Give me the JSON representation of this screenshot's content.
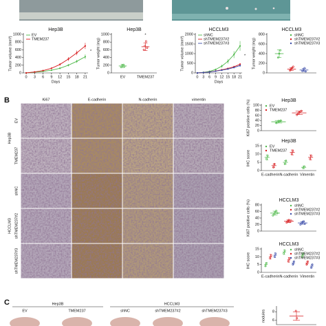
{
  "panel_labels": {
    "b": "B",
    "c": "C"
  },
  "ihc": {
    "columns": [
      "Ki67",
      "E-cadherin",
      "N-cadherin",
      "vimentin"
    ],
    "rows": [
      "EV",
      "TMEM237",
      "shNC",
      "shTMEM237#2",
      "shTMEM237#3"
    ],
    "groups": [
      "Hep3B",
      "HCCLM3"
    ]
  },
  "panel_c": {
    "groups": [
      {
        "label": "Hep3B",
        "items": [
          "EV",
          "TMEM237"
        ]
      },
      {
        "label": "HCCLM3",
        "items": [
          "shNC",
          "shTMEM237#2",
          "shTMEM237#3"
        ]
      }
    ]
  },
  "chart_data": [
    {
      "type": "line",
      "title": "Hep3B",
      "x": [
        0,
        3,
        6,
        9,
        12,
        15,
        18,
        21
      ],
      "xlim": [
        -1,
        22
      ],
      "xticks": [
        0,
        3,
        6,
        9,
        12,
        15,
        18,
        21
      ],
      "xlabel": "Days",
      "ylabel": "Tumor volume (mm³)",
      "ylim": [
        0,
        1000
      ],
      "yticks": [
        0,
        200,
        400,
        600,
        800,
        1000
      ],
      "legend": "upper left",
      "annotations": [
        "*"
      ],
      "series": [
        {
          "name": "EV",
          "color": "#4cb848",
          "values": [
            0,
            20,
            40,
            70,
            120,
            200,
            300,
            420
          ],
          "errors": [
            0,
            5,
            10,
            15,
            20,
            30,
            40,
            60
          ]
        },
        {
          "name": "TMEM237",
          "color": "#d7191c",
          "values": [
            0,
            25,
            60,
            120,
            220,
            360,
            520,
            700
          ],
          "errors": [
            0,
            5,
            10,
            20,
            30,
            50,
            60,
            80
          ]
        }
      ]
    },
    {
      "type": "dot",
      "title": "Hep3B",
      "ylabel": "Tumor weight (mg)",
      "categories": [
        "EV",
        "TMEM237"
      ],
      "ylim": [
        0,
        1000
      ],
      "yticks": [
        0,
        200,
        400,
        600,
        800,
        1000
      ],
      "annotations": [
        "*"
      ],
      "series": [
        {
          "colors": [
            "#4cb848",
            "#d7191c"
          ],
          "values": [
            180,
            680
          ],
          "errors": [
            40,
            100
          ],
          "points": [
            [
              150,
              190,
              210,
              170
            ],
            [
              600,
              700,
              820,
              650
            ]
          ]
        }
      ]
    },
    {
      "type": "line",
      "title": "HCCLM3",
      "x": [
        0,
        3,
        6,
        9,
        12,
        15,
        18,
        21
      ],
      "xlim": [
        -1,
        22
      ],
      "xticks": [
        0,
        3,
        6,
        9,
        12,
        15,
        18,
        21
      ],
      "xlabel": "Days",
      "ylabel": "Tumor volume (mm³)",
      "ylim": [
        0,
        2000
      ],
      "yticks": [
        0,
        500,
        1000,
        1500,
        2000
      ],
      "legend": "upper left",
      "annotations": [
        "*"
      ],
      "series": [
        {
          "name": "shNC",
          "color": "#4cb848",
          "values": [
            0,
            30,
            80,
            180,
            350,
            600,
            950,
            1400
          ],
          "errors": [
            0,
            10,
            20,
            40,
            80,
            120,
            180,
            250
          ]
        },
        {
          "name": "shTMEM237#2",
          "color": "#d7191c",
          "values": [
            0,
            20,
            50,
            100,
            160,
            230,
            320,
            450
          ],
          "errors": [
            0,
            5,
            10,
            20,
            30,
            40,
            50,
            60
          ]
        },
        {
          "name": "shTMEM237#3",
          "color": "#3a4ba8",
          "values": [
            0,
            20,
            45,
            90,
            140,
            200,
            280,
            380
          ],
          "errors": [
            0,
            5,
            10,
            15,
            25,
            35,
            45,
            55
          ]
        }
      ]
    },
    {
      "type": "dot",
      "title": "HCCLM3",
      "ylabel": "Tumor weight (mg)",
      "categories": [
        null
      ],
      "ylim": [
        0,
        800
      ],
      "yticks": [
        0,
        200,
        400,
        600,
        800
      ],
      "legend": "upper right",
      "series": [
        {
          "name": "shNC",
          "color": "#4cb848",
          "values": [
            400
          ],
          "errors": [
            80
          ],
          "points": [
            [
              320,
              400,
              470
            ]
          ]
        },
        {
          "name": "shTMEM237#2",
          "color": "#d7191c",
          "values": [
            80
          ],
          "errors": [
            30
          ],
          "points": [
            [
              50,
              80,
              110,
              130
            ]
          ]
        },
        {
          "name": "shTMEM237#3",
          "color": "#3a4ba8",
          "values": [
            60
          ],
          "errors": [
            30
          ],
          "points": [
            [
              40,
              60,
              100,
              30
            ]
          ]
        }
      ]
    },
    {
      "type": "dot",
      "title": "Hep3B",
      "ylabel": "Ki67 positive cells (%)",
      "categories": [
        null
      ],
      "ylim": [
        0,
        100
      ],
      "yticks": [
        0,
        20,
        40,
        60,
        80,
        100
      ],
      "legend": "upper left",
      "series": [
        {
          "name": "EV",
          "color": "#4cb848",
          "values": [
            35
          ],
          "errors": [
            5
          ],
          "points": [
            [
              30,
              33,
              38,
              36,
              40
            ]
          ]
        },
        {
          "name": "TMEM237",
          "color": "#d7191c",
          "values": [
            70
          ],
          "errors": [
            7
          ],
          "points": [
            [
              62,
              68,
              72,
              75,
              78
            ]
          ]
        }
      ]
    },
    {
      "type": "dot",
      "title": "Hep3B",
      "ylabel": "IHC score",
      "categories": [
        "E-cadherin",
        "N-cadherin",
        "Vimentin"
      ],
      "ylim": [
        0,
        15
      ],
      "yticks": [
        0,
        5,
        10,
        15
      ],
      "legend": "upper left",
      "series": [
        {
          "name": "EV",
          "color": "#4cb848",
          "values": [
            8,
            5,
            2
          ],
          "errors": [
            1.5,
            1,
            0.8
          ],
          "points": [
            [
              7,
              9
            ],
            [
              4,
              6
            ],
            [
              1.5,
              2.5
            ]
          ]
        },
        {
          "name": "TMEM237",
          "color": "#d7191c",
          "values": [
            3,
            11,
            8
          ],
          "errors": [
            1,
            1.5,
            1.5
          ],
          "points": [
            [
              2,
              4
            ],
            [
              10,
              12
            ],
            [
              7,
              9
            ]
          ]
        }
      ]
    },
    {
      "type": "dot",
      "title": "HCCLM3",
      "ylabel": "Ki67 positive cells (%)",
      "categories": [
        null
      ],
      "ylim": [
        0,
        80
      ],
      "yticks": [
        0,
        20,
        40,
        60,
        80
      ],
      "legend": "upper right",
      "series": [
        {
          "name": "shNC",
          "color": "#4cb848",
          "values": [
            55
          ],
          "errors": [
            6
          ],
          "points": [
            [
              48,
              52,
              58,
              62,
              55
            ]
          ]
        },
        {
          "name": "shTMEM237#2",
          "color": "#d7191c",
          "values": [
            30
          ],
          "errors": [
            4
          ],
          "points": [
            [
              26,
              30,
              34,
              28,
              32
            ]
          ]
        },
        {
          "name": "shTMEM237#3",
          "color": "#3a4ba8",
          "values": [
            25
          ],
          "errors": [
            4
          ],
          "points": [
            [
              20,
              24,
              28,
              30,
              22
            ]
          ]
        }
      ]
    },
    {
      "type": "dot",
      "title": "HCCLM3",
      "ylabel": "IHC score",
      "categories": [
        "E-cadherin",
        "N-cadherin",
        "Vimentin"
      ],
      "ylim": [
        0,
        15
      ],
      "yticks": [
        0,
        5,
        10,
        15
      ],
      "legend": "upper right",
      "series": [
        {
          "name": "shNC",
          "color": "#4cb848",
          "values": [
            5,
            13,
            11
          ],
          "errors": [
            1,
            1.5,
            1.5
          ],
          "points": [
            [
              4,
              6
            ],
            [
              12,
              14
            ],
            [
              10,
              12
            ]
          ]
        },
        {
          "name": "shTMEM237#2",
          "color": "#d7191c",
          "values": [
            10,
            8,
            6
          ],
          "errors": [
            1.5,
            1.5,
            1
          ],
          "points": [
            [
              9,
              11
            ],
            [
              7,
              9
            ],
            [
              5,
              7
            ]
          ]
        },
        {
          "name": "shTMEM237#3",
          "color": "#3a4ba8",
          "values": [
            11,
            6,
            4
          ],
          "errors": [
            1.5,
            1,
            1
          ],
          "points": [
            [
              10,
              12
            ],
            [
              5,
              7
            ],
            [
              3,
              5
            ]
          ]
        }
      ]
    },
    {
      "type": "dot",
      "ylabel": "nodules",
      "categories": [
        null
      ],
      "ylim": [
        5,
        9
      ],
      "yticks": [
        6,
        8
      ],
      "series": [
        {
          "color": "#d7191c",
          "values": [
            7
          ],
          "errors": [
            1
          ],
          "points": [
            [
              8.2,
              6.5
            ]
          ]
        }
      ]
    }
  ]
}
